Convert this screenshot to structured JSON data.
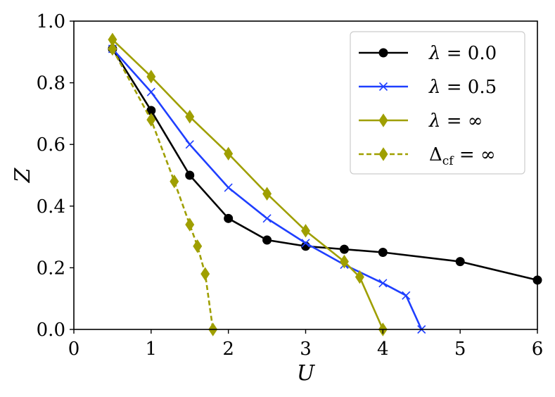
{
  "chart_data": {
    "type": "line",
    "xlabel": "U",
    "ylabel": "Z",
    "xlim": [
      0,
      6
    ],
    "ylim": [
      0,
      1.0
    ],
    "xticks": [
      0,
      1,
      2,
      3,
      4,
      5,
      6
    ],
    "xtick_labels": [
      "0",
      "1",
      "2",
      "3",
      "4",
      "5",
      "6"
    ],
    "yticks": [
      0,
      0.2,
      0.4,
      0.6,
      0.8,
      1.0
    ],
    "ytick_labels": [
      "0.0",
      "0.2",
      "0.4",
      "0.6",
      "0.8",
      "1.0"
    ],
    "grid": false,
    "legend_position": "top-right",
    "series": [
      {
        "name": "λ = 0.0",
        "legend": {
          "symbol": "λ",
          "rest": " = 0.0",
          "sub": ""
        },
        "color": "#000000",
        "marker": "circle",
        "linestyle": "solid",
        "x": [
          0.5,
          1.0,
          1.5,
          2.0,
          2.5,
          3.0,
          3.5,
          4.0,
          5.0,
          6.0
        ],
        "y": [
          0.91,
          0.71,
          0.5,
          0.36,
          0.29,
          0.27,
          0.26,
          0.25,
          0.22,
          0.16
        ]
      },
      {
        "name": "λ = 0.5",
        "legend": {
          "symbol": "λ",
          "rest": " = 0.5",
          "sub": ""
        },
        "color": "#1f3fff",
        "marker": "x",
        "linestyle": "solid",
        "x": [
          0.5,
          1.0,
          1.5,
          2.0,
          2.5,
          3.0,
          3.5,
          4.0,
          4.3,
          4.5
        ],
        "y": [
          0.91,
          0.77,
          0.6,
          0.46,
          0.36,
          0.28,
          0.21,
          0.15,
          0.11,
          0.0
        ]
      },
      {
        "name": "λ = ∞",
        "legend": {
          "symbol": "λ",
          "rest": " = ∞",
          "sub": ""
        },
        "color": "#9f9f00",
        "marker": "diamond",
        "linestyle": "solid",
        "x": [
          0.5,
          1.0,
          1.5,
          2.0,
          2.5,
          3.0,
          3.5,
          3.7,
          4.0
        ],
        "y": [
          0.94,
          0.82,
          0.69,
          0.57,
          0.44,
          0.32,
          0.22,
          0.17,
          0.0
        ]
      },
      {
        "name": "Δcf = ∞",
        "legend": {
          "symbol": "Δ",
          "rest": " = ∞",
          "sub": "cf"
        },
        "color": "#9f9f00",
        "marker": "diamond",
        "linestyle": "dashed",
        "x": [
          0.5,
          1.0,
          1.3,
          1.5,
          1.6,
          1.7,
          1.8
        ],
        "y": [
          0.91,
          0.68,
          0.48,
          0.34,
          0.27,
          0.18,
          0.0
        ]
      }
    ]
  }
}
